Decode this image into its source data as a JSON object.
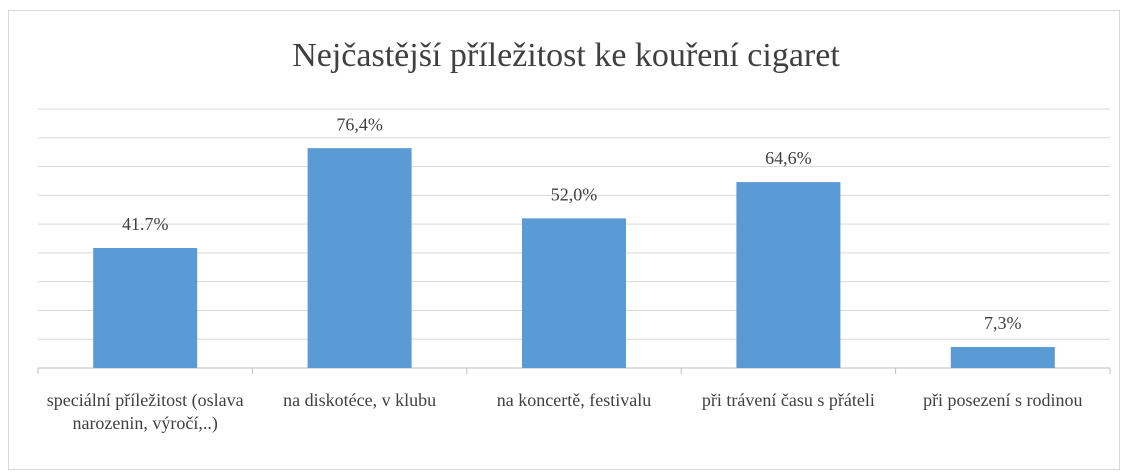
{
  "chart_data": {
    "type": "bar",
    "title": "Nejčastější příležitost ke kouření cigaret",
    "categories": [
      "speciální příležitost (oslava narozenin, výročí,..)",
      "na diskotéce, v klubu",
      "na koncertě, festivalu",
      "při trávení času s přáteli",
      "při posezení s rodinou"
    ],
    "values": [
      41.7,
      76.4,
      52.0,
      64.6,
      7.3
    ],
    "value_labels": [
      "41.7%",
      "76,4%",
      "52,0%",
      "64,6%",
      "7,3%"
    ],
    "color": "#5b9bd5",
    "ylim": [
      0,
      90
    ],
    "yticks": [
      0,
      10,
      20,
      30,
      40,
      50,
      60,
      70,
      80,
      90
    ],
    "grid": true
  }
}
